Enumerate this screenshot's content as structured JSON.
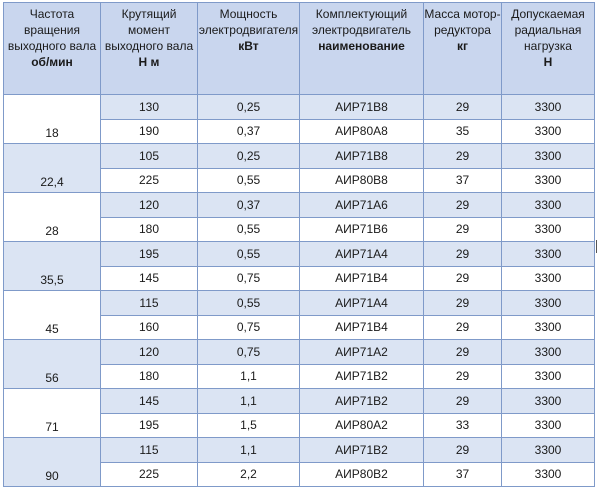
{
  "headers": [
    {
      "text": "Частота вращения выходного вала",
      "unit": "об/мин"
    },
    {
      "text": "Крутящий момент выходного вала",
      "unit": "Н м"
    },
    {
      "text": "Мощность электродвигателя",
      "unit": "кВт"
    },
    {
      "text": "Комплектующий электродвигатель",
      "unit": "наименование"
    },
    {
      "text": "Масса мотор-редуктора",
      "unit": "кг"
    },
    {
      "text": "Допускаемая радиальная нагрузка",
      "unit": "Н"
    }
  ],
  "groups": [
    {
      "speed": "18",
      "rows": [
        {
          "torque": "130",
          "power": "0,25",
          "motor": "АИР71В8",
          "mass": "29",
          "load": "3300"
        },
        {
          "torque": "190",
          "power": "0,37",
          "motor": "АИР80А8",
          "mass": "35",
          "load": "3300"
        }
      ]
    },
    {
      "speed": "22,4",
      "rows": [
        {
          "torque": "105",
          "power": "0,25",
          "motor": "АИР71В8",
          "mass": "29",
          "load": "3300"
        },
        {
          "torque": "225",
          "power": "0,55",
          "motor": "АИР80В8",
          "mass": "37",
          "load": "3300"
        }
      ]
    },
    {
      "speed": "28",
      "rows": [
        {
          "torque": "120",
          "power": "0,37",
          "motor": "АИР71А6",
          "mass": "29",
          "load": "3300"
        },
        {
          "torque": "180",
          "power": "0,55",
          "motor": "АИР71В6",
          "mass": "29",
          "load": "3300"
        }
      ]
    },
    {
      "speed": "35,5",
      "rows": [
        {
          "torque": "195",
          "power": "0,55",
          "motor": "АИР71А4",
          "mass": "29",
          "load": "3300"
        },
        {
          "torque": "145",
          "power": "0,75",
          "motor": "АИР71В4",
          "mass": "29",
          "load": "3300"
        }
      ]
    },
    {
      "speed": "45",
      "rows": [
        {
          "torque": "115",
          "power": "0,55",
          "motor": "АИР71А4",
          "mass": "29",
          "load": "3300"
        },
        {
          "torque": "160",
          "power": "0,75",
          "motor": "АИР71В4",
          "mass": "29",
          "load": "3300"
        }
      ]
    },
    {
      "speed": "56",
      "rows": [
        {
          "torque": "120",
          "power": "0,75",
          "motor": "АИР71А2",
          "mass": "29",
          "load": "3300"
        },
        {
          "torque": "180",
          "power": "1,1",
          "motor": "АИР71В2",
          "mass": "29",
          "load": "3300"
        }
      ]
    },
    {
      "speed": "71",
      "rows": [
        {
          "torque": "145",
          "power": "1,1",
          "motor": "АИР71В2",
          "mass": "29",
          "load": "3300"
        },
        {
          "torque": "195",
          "power": "1,5",
          "motor": "АИР80А2",
          "mass": "33",
          "load": "3300"
        }
      ]
    },
    {
      "speed": "90",
      "rows": [
        {
          "torque": "115",
          "power": "1,1",
          "motor": "АИР71В2",
          "mass": "29",
          "load": "3300"
        },
        {
          "torque": "225",
          "power": "2,2",
          "motor": "АИР80В2",
          "mass": "37",
          "load": "3300"
        }
      ]
    }
  ]
}
